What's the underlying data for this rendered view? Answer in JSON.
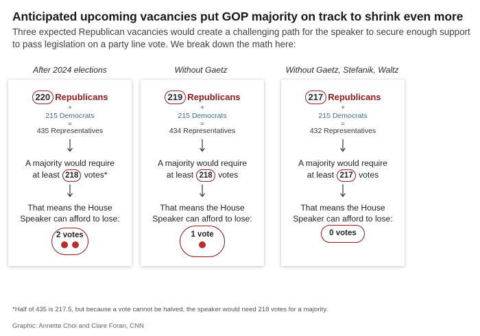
{
  "title": "Anticipated upcoming vacancies put GOP majority on track to shrink even more",
  "subtitle": "Three expected Republican vacancies would create a challenging path for the speaker to secure enough support to pass legislation on a party line vote. We break down the math here:",
  "columns": [
    {
      "heading": "After 2024 elections",
      "republicans_count": "220",
      "republicans_label": "Republicans",
      "plus": "+",
      "democrats": "215 Democrats",
      "equals": "=",
      "total": "435 Representatives",
      "majority_line1": "A majority would require",
      "majority_prefix": "at least",
      "majority_votes": "218",
      "majority_suffix": "votes*",
      "means_line1": "That means the House",
      "means_line2": "Speaker can afford to lose:",
      "lose_label": "2 votes",
      "lose_dots": 2
    },
    {
      "heading": "Without Gaetz",
      "republicans_count": "219",
      "republicans_label": "Republicans",
      "plus": "+",
      "democrats": "215 Democrats",
      "equals": "=",
      "total": "434 Representatives",
      "majority_line1": "A majority would require",
      "majority_prefix": "at least",
      "majority_votes": "218",
      "majority_suffix": "votes",
      "means_line1": "That means the House",
      "means_line2": "Speaker can afford to lose:",
      "lose_label": "1 vote",
      "lose_dots": 1
    },
    {
      "heading": "Without Gaetz, Stefanik, Waltz",
      "republicans_count": "217",
      "republicans_label": "Republicans",
      "plus": "+",
      "democrats": "215 Democrats",
      "equals": "=",
      "total": "432 Representatives",
      "majority_line1": "A majority would require",
      "majority_prefix": "at least",
      "majority_votes": "217",
      "majority_suffix": "votes",
      "means_line1": "That means the House",
      "means_line2": "Speaker can afford to lose:",
      "lose_label": "0 votes",
      "lose_dots": 0
    }
  ],
  "footnote": "*Half of 435 is 217.5, but because a vote cannot be halved, the speaker would need 218 votes for a majority.",
  "credit": "Graphic: Annette Choi and Clare Foran, CNN",
  "colors": {
    "republican_red": "#8b1a1a",
    "dot_red": "#b82e2e",
    "democrat_blue": "#3d6a93"
  }
}
